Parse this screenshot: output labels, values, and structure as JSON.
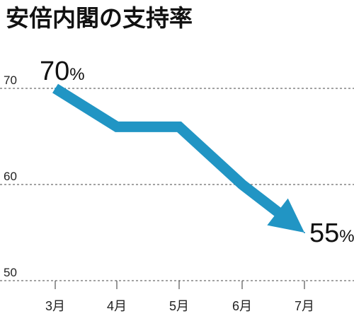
{
  "chart_data": {
    "type": "line",
    "title": "安倍内閣の支持率",
    "categories": [
      "3月",
      "4月",
      "5月",
      "6月",
      "7月"
    ],
    "series": [
      {
        "values": [
          70,
          66,
          66,
          60,
          55
        ]
      }
    ],
    "ylim": [
      50,
      72
    ],
    "yticks": [
      {
        "value": 70,
        "label": "70"
      },
      {
        "value": 60,
        "label": "60"
      },
      {
        "value": 50,
        "label": "50"
      }
    ],
    "annotations": [
      {
        "value_text": "70",
        "unit": "%",
        "category": "3月"
      },
      {
        "value_text": "55",
        "unit": "%",
        "category": "7月"
      }
    ],
    "grid": true,
    "line_color": "#2195c4"
  }
}
